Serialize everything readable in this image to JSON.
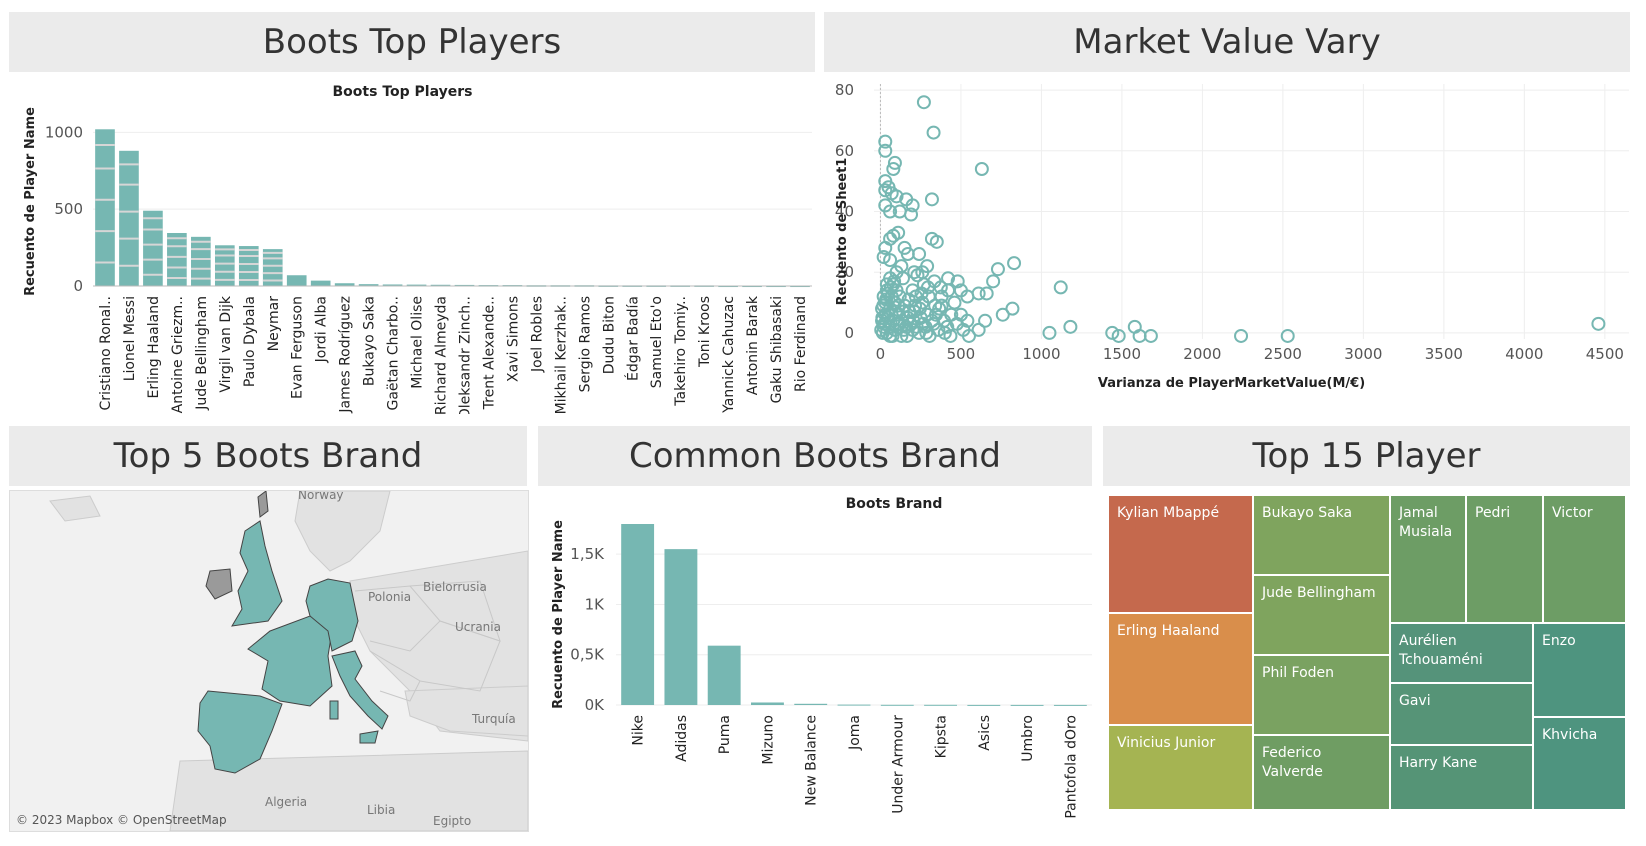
{
  "panels": {
    "boots_top_players": "Boots Top Players",
    "market_value": "Market Value Vary",
    "top5_brand": "Top 5 Boots Brand",
    "common_brand": "Common Boots Brand",
    "top15": "Top 15 Player"
  },
  "chart_data": [
    {
      "type": "bar",
      "title": "Boots Top Players",
      "ylabel": "Recuento de Player Name",
      "ylim": [
        0,
        1100
      ],
      "yticks": [
        0,
        500,
        1000
      ],
      "color": "#76b7b2",
      "categories": [
        "Cristiano Ronal..",
        "Lionel Messi",
        "Erling Haaland",
        "Antoine Griezm..",
        "Jude Bellingham",
        "Virgil van Dijk",
        "Paulo Dybala",
        "Neymar",
        "Evan Ferguson",
        "Jordi Alba",
        "James Rodríguez",
        "Bukayo Saka",
        "Gaëtan Charbo..",
        "Michael Olise",
        "Richard Almeyda",
        "Oleksandr Zinch..",
        "Trent Alexande..",
        "Xavi Simons",
        "Joel Robles",
        "Mikhail Kerzhak..",
        "Sergio Ramos",
        "Dudu Biton",
        "Édgar Badía",
        "Samuel Eto'o",
        "Takehiro Tomiy..",
        "Toni Kroos",
        "Yannick Cahuzac",
        "Antonin Barak",
        "Gaku Shibasaki",
        "Rio Ferdinand"
      ],
      "values": [
        1020,
        880,
        490,
        345,
        320,
        265,
        260,
        240,
        70,
        35,
        18,
        12,
        10,
        9,
        8,
        7,
        6,
        6,
        5,
        5,
        5,
        4,
        4,
        4,
        4,
        4,
        3,
        3,
        3,
        3
      ]
    },
    {
      "type": "scatter",
      "xlabel": "Varianza de PlayerMarketValue(M/€)",
      "ylabel": "Recuento de Sheet1",
      "xlim": [
        -40,
        4650
      ],
      "ylim": [
        -2,
        82
      ],
      "xticks": [
        0,
        500,
        1000,
        1500,
        2000,
        2500,
        3000,
        3500,
        4000,
        4500
      ],
      "yticks": [
        0,
        20,
        40,
        60,
        80
      ],
      "color": "#76b7b2",
      "points": [
        [
          270,
          76
        ],
        [
          330,
          66
        ],
        [
          30,
          63
        ],
        [
          30,
          60
        ],
        [
          90,
          56
        ],
        [
          80,
          54
        ],
        [
          630,
          54
        ],
        [
          30,
          50
        ],
        [
          50,
          48
        ],
        [
          30,
          47
        ],
        [
          70,
          46
        ],
        [
          100,
          45
        ],
        [
          320,
          44
        ],
        [
          160,
          44
        ],
        [
          200,
          42
        ],
        [
          30,
          42
        ],
        [
          60,
          40
        ],
        [
          120,
          40
        ],
        [
          190,
          39
        ],
        [
          80,
          32
        ],
        [
          110,
          33
        ],
        [
          60,
          31
        ],
        [
          320,
          31
        ],
        [
          350,
          30
        ],
        [
          30,
          28
        ],
        [
          150,
          28
        ],
        [
          240,
          26
        ],
        [
          20,
          25
        ],
        [
          60,
          24
        ],
        [
          290,
          22
        ],
        [
          830,
          23
        ],
        [
          420,
          18
        ],
        [
          480,
          17
        ],
        [
          500,
          14
        ],
        [
          540,
          12
        ],
        [
          610,
          13
        ],
        [
          660,
          13
        ],
        [
          730,
          21
        ],
        [
          700,
          17
        ],
        [
          820,
          8
        ],
        [
          760,
          6
        ],
        [
          650,
          4
        ],
        [
          1120,
          15
        ],
        [
          1180,
          2
        ],
        [
          1580,
          2
        ],
        [
          1610,
          -1
        ],
        [
          1050,
          0
        ],
        [
          1440,
          0
        ],
        [
          1480,
          -1
        ],
        [
          1680,
          -1
        ],
        [
          2240,
          -1
        ],
        [
          2530,
          -1
        ],
        [
          4460,
          3
        ],
        [
          540,
          4
        ],
        [
          550,
          -1
        ],
        [
          610,
          1
        ],
        [
          440,
          6
        ],
        [
          380,
          9
        ],
        [
          260,
          10
        ],
        [
          200,
          14
        ],
        [
          140,
          18
        ],
        [
          100,
          20
        ],
        [
          40,
          16
        ],
        [
          70,
          12
        ],
        [
          30,
          10
        ],
        [
          10,
          8
        ],
        [
          50,
          6
        ],
        [
          80,
          4
        ],
        [
          120,
          3
        ],
        [
          160,
          2
        ],
        [
          200,
          1
        ],
        [
          240,
          0
        ],
        [
          280,
          2
        ],
        [
          320,
          4
        ],
        [
          360,
          1
        ],
        [
          400,
          0
        ],
        [
          20,
          2
        ],
        [
          40,
          0
        ],
        [
          60,
          -1
        ],
        [
          90,
          1
        ],
        [
          130,
          -1
        ],
        [
          170,
          5
        ],
        [
          210,
          7
        ],
        [
          250,
          5
        ],
        [
          290,
          6
        ],
        [
          330,
          3
        ],
        [
          10,
          4
        ],
        [
          30,
          6
        ],
        [
          60,
          8
        ],
        [
          90,
          10
        ],
        [
          120,
          12
        ],
        [
          150,
          9
        ],
        [
          180,
          7
        ],
        [
          220,
          12
        ],
        [
          230,
          19
        ],
        [
          270,
          16
        ],
        [
          300,
          12
        ],
        [
          340,
          9
        ],
        [
          380,
          12
        ],
        [
          420,
          14
        ],
        [
          460,
          10
        ],
        [
          500,
          6
        ],
        [
          15,
          0
        ],
        [
          25,
          3
        ],
        [
          45,
          5
        ],
        [
          55,
          2
        ],
        [
          75,
          -1
        ],
        [
          95,
          7
        ],
        [
          105,
          3
        ],
        [
          115,
          6
        ],
        [
          135,
          4
        ],
        [
          145,
          1
        ],
        [
          165,
          -1
        ],
        [
          185,
          3
        ],
        [
          205,
          4
        ],
        [
          225,
          2
        ],
        [
          245,
          8
        ],
        [
          265,
          3
        ],
        [
          285,
          0
        ],
        [
          305,
          -1
        ],
        [
          345,
          6
        ],
        [
          365,
          8
        ],
        [
          395,
          4
        ],
        [
          415,
          2
        ],
        [
          435,
          -1
        ],
        [
          475,
          3
        ],
        [
          515,
          1
        ],
        [
          20,
          12
        ],
        [
          40,
          14
        ],
        [
          60,
          18
        ],
        [
          80,
          16
        ],
        [
          100,
          14
        ],
        [
          130,
          22
        ],
        [
          170,
          26
        ],
        [
          210,
          20
        ],
        [
          260,
          20
        ],
        [
          5,
          1
        ],
        [
          12,
          5
        ],
        [
          18,
          9
        ],
        [
          35,
          11
        ],
        [
          48,
          13
        ],
        [
          65,
          15
        ],
        [
          85,
          17
        ],
        [
          110,
          9
        ],
        [
          140,
          7
        ],
        [
          175,
          11
        ],
        [
          215,
          9
        ],
        [
          255,
          13
        ],
        [
          295,
          15
        ],
        [
          335,
          17
        ],
        [
          375,
          15
        ]
      ]
    },
    {
      "type": "bar",
      "title": "Boots Brand",
      "ylabel": "Recuento de Player Name",
      "ylim": [
        0,
        1800
      ],
      "yticks": [
        0,
        500,
        1000,
        1500
      ],
      "ytick_labels": [
        "0K",
        "0,5K",
        "1K",
        "1,5K"
      ],
      "color": "#76b7b2",
      "categories": [
        "Nike",
        "Adidas",
        "Puma",
        "Mizuno",
        "New Balance",
        "Joma",
        "Under Armour",
        "Kipsta",
        "Asics",
        "Umbro",
        "Pantofola dOro"
      ],
      "values": [
        1800,
        1550,
        590,
        25,
        12,
        4,
        2,
        2,
        1,
        1,
        1
      ]
    }
  ],
  "map": {
    "credit": "© 2023 Mapbox © OpenStreetMap",
    "labels": {
      "norway": "Norway",
      "polonia": "Polonia",
      "bielorrusia": "Bielorrusia",
      "ucrania": "Ucrania",
      "turquia": "Turquía",
      "algeria": "Algeria",
      "libia": "Libia",
      "egipto": "Egipto"
    },
    "highlight_color": "#76b7b2"
  },
  "treemap": {
    "tiles": [
      {
        "name": "Kylian Mbappé",
        "color": "#c5694d"
      },
      {
        "name": "Erling Haaland",
        "color": "#d98e4b"
      },
      {
        "name": "Vinicius Junior",
        "color": "#a5b452"
      },
      {
        "name": "Bukayo Saka",
        "color": "#7fa45e"
      },
      {
        "name": "Jude Bellingham",
        "color": "#7fa45e"
      },
      {
        "name": "Phil Foden",
        "color": "#7aa261"
      },
      {
        "name": "Federico Valverde",
        "color": "#6f9d63"
      },
      {
        "name": "Jamal Musiala",
        "color": "#6d9d65"
      },
      {
        "name": "Pedri",
        "color": "#6d9d65"
      },
      {
        "name": "Victor",
        "color": "#6d9d65"
      },
      {
        "name": "Aurélien Tchouaméni",
        "color": "#55937a"
      },
      {
        "name": "Gavi",
        "color": "#569477"
      },
      {
        "name": "Harry Kane",
        "color": "#559476"
      },
      {
        "name": "Enzo",
        "color": "#4e947f"
      },
      {
        "name": "Khvicha",
        "color": "#4e947f"
      }
    ]
  }
}
